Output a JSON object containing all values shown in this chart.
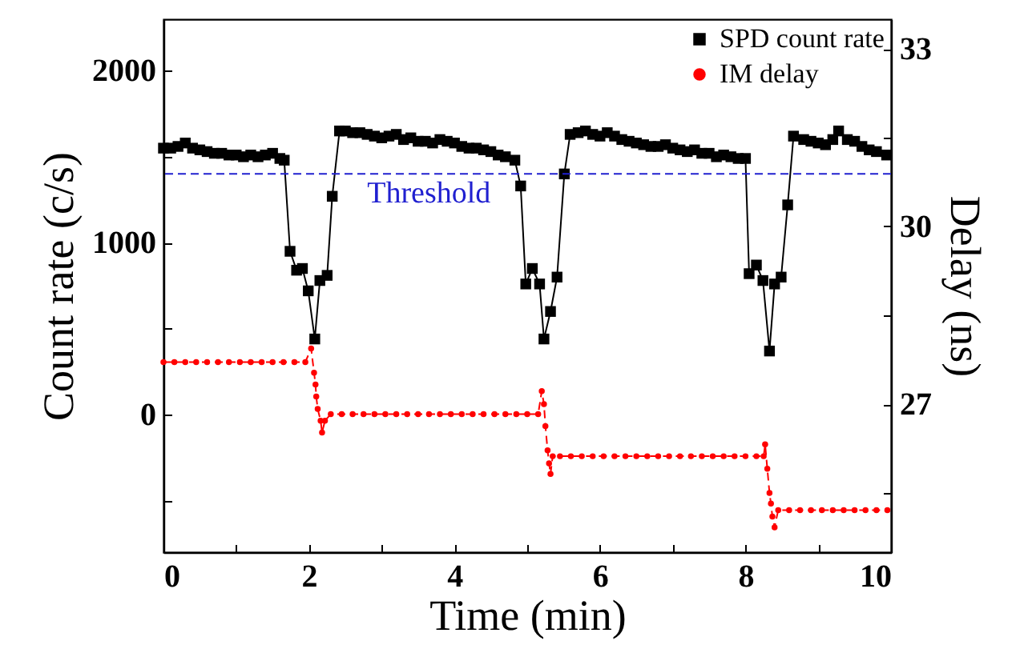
{
  "chart_data": {
    "type": "line",
    "xlabel": "Time (min)",
    "ylabel": "Count rate (c/s)",
    "y2label": "Delay (ns)",
    "xlim": [
      0,
      10
    ],
    "xticks": [
      0,
      {
        "value": 1,
        "label": null
      },
      2,
      {
        "value": 3,
        "label": null
      },
      4,
      {
        "value": 5,
        "label": null
      },
      6,
      {
        "value": 7,
        "label": null
      },
      8,
      {
        "value": 9,
        "label": null
      },
      10
    ],
    "ylim": [
      -800,
      2300
    ],
    "yticks": [
      {
        "value": -500,
        "label": null
      },
      0,
      {
        "value": 500,
        "label": null
      },
      1000,
      {
        "value": 1500,
        "label": null
      },
      2000
    ],
    "y2lim": [
      24.5,
      33.5
    ],
    "y2ticks": [
      {
        "value": 25.5,
        "label": null
      },
      27,
      {
        "value": 28.5,
        "label": null
      },
      30,
      {
        "value": 31.5,
        "label": null
      },
      33
    ],
    "legend": "top right",
    "ref_lines": [
      {
        "axis": "y",
        "value": 1400,
        "label": "Threshold",
        "color": "#2020d0",
        "line_style": "dashed"
      }
    ],
    "series": [
      {
        "name": "SPD count rate",
        "color": "#000000",
        "marker": "square",
        "line_style": "solid",
        "x": [
          0,
          0.1,
          0.2,
          0.3,
          0.4,
          0.5,
          0.6,
          0.7,
          0.8,
          0.9,
          1.0,
          1.1,
          1.2,
          1.3,
          1.4,
          1.5,
          1.6,
          1.66,
          1.74,
          1.83,
          1.91,
          1.99,
          2.08,
          2.15,
          2.25,
          2.32,
          2.42,
          2.5,
          2.6,
          2.7,
          2.8,
          2.9,
          3.0,
          3.1,
          3.2,
          3.3,
          3.4,
          3.5,
          3.6,
          3.7,
          3.8,
          3.9,
          4.0,
          4.1,
          4.2,
          4.3,
          4.4,
          4.5,
          4.6,
          4.7,
          4.83,
          4.91,
          4.98,
          5.07,
          5.17,
          5.23,
          5.32,
          5.41,
          5.51,
          5.59,
          5.7,
          5.8,
          5.9,
          6.0,
          6.1,
          6.2,
          6.3,
          6.4,
          6.5,
          6.6,
          6.7,
          6.8,
          6.9,
          7.0,
          7.1,
          7.2,
          7.3,
          7.4,
          7.5,
          7.6,
          7.7,
          7.8,
          7.9,
          8.0,
          8.05,
          8.15,
          8.24,
          8.33,
          8.4,
          8.49,
          8.58,
          8.66,
          8.8,
          8.9,
          9.0,
          9.1,
          9.2,
          9.28,
          9.4,
          9.5,
          9.6,
          9.7,
          9.8,
          9.94
        ],
        "values": [
          1550,
          1550,
          1560,
          1580,
          1550,
          1540,
          1530,
          1520,
          1520,
          1510,
          1510,
          1500,
          1510,
          1500,
          1510,
          1520,
          1490,
          1480,
          950,
          840,
          850,
          720,
          440,
          780,
          810,
          1270,
          1650,
          1650,
          1640,
          1640,
          1630,
          1620,
          1610,
          1620,
          1630,
          1600,
          1610,
          1590,
          1590,
          1580,
          1600,
          1590,
          1580,
          1560,
          1550,
          1550,
          1540,
          1530,
          1510,
          1500,
          1480,
          1330,
          760,
          850,
          760,
          440,
          600,
          800,
          1400,
          1630,
          1640,
          1650,
          1630,
          1620,
          1640,
          1620,
          1600,
          1590,
          1580,
          1570,
          1560,
          1560,
          1570,
          1550,
          1540,
          1530,
          1540,
          1520,
          1520,
          1500,
          1510,
          1500,
          1490,
          1490,
          820,
          870,
          780,
          370,
          760,
          800,
          1220,
          1620,
          1600,
          1590,
          1580,
          1570,
          1600,
          1650,
          1600,
          1590,
          1560,
          1540,
          1530,
          1510
        ]
      },
      {
        "name": "IM delay",
        "color": "#ff0000",
        "marker": "circle",
        "line_style": "dashed",
        "axis": "y2",
        "x": [
          0,
          0.15,
          0.3,
          0.45,
          0.6,
          0.75,
          0.9,
          1.05,
          1.2,
          1.35,
          1.5,
          1.65,
          1.8,
          1.95,
          2.03,
          2.07,
          2.09,
          2.1,
          2.12,
          2.16,
          2.18,
          2.22,
          2.3,
          2.45,
          2.6,
          2.75,
          2.9,
          3.05,
          3.2,
          3.35,
          3.5,
          3.65,
          3.8,
          3.95,
          4.1,
          4.25,
          4.4,
          4.55,
          4.7,
          4.85,
          5.0,
          5.15,
          5.2,
          5.23,
          5.25,
          5.28,
          5.3,
          5.32,
          5.35,
          5.45,
          5.6,
          5.75,
          5.9,
          6.05,
          6.2,
          6.35,
          6.5,
          6.65,
          6.8,
          6.95,
          7.1,
          7.25,
          7.4,
          7.55,
          7.7,
          7.85,
          8.0,
          8.15,
          8.25,
          8.27,
          8.3,
          8.33,
          8.35,
          8.37,
          8.4,
          8.45,
          8.6,
          8.75,
          8.9,
          9.05,
          9.2,
          9.35,
          9.5,
          9.65,
          9.8,
          9.95
        ],
        "values": [
          27.71,
          27.71,
          27.71,
          27.71,
          27.71,
          27.71,
          27.71,
          27.71,
          27.71,
          27.71,
          27.71,
          27.71,
          27.71,
          27.71,
          27.94,
          27.53,
          27.33,
          27.13,
          26.92,
          26.72,
          26.52,
          26.72,
          26.83,
          26.83,
          26.83,
          26.83,
          26.83,
          26.83,
          26.83,
          26.83,
          26.83,
          26.83,
          26.83,
          26.83,
          26.83,
          26.83,
          26.83,
          26.83,
          26.83,
          26.83,
          26.83,
          26.83,
          27.22,
          27.0,
          26.63,
          26.22,
          26.0,
          25.82,
          26.12,
          26.12,
          26.12,
          26.12,
          26.12,
          26.12,
          26.12,
          26.12,
          26.12,
          26.12,
          26.12,
          26.12,
          26.12,
          26.12,
          26.12,
          26.12,
          26.12,
          26.12,
          26.12,
          26.12,
          26.12,
          26.32,
          25.91,
          25.5,
          25.32,
          25.1,
          24.92,
          25.21,
          25.21,
          25.21,
          25.21,
          25.21,
          25.21,
          25.21,
          25.21,
          25.21,
          25.21,
          25.21
        ]
      }
    ]
  }
}
